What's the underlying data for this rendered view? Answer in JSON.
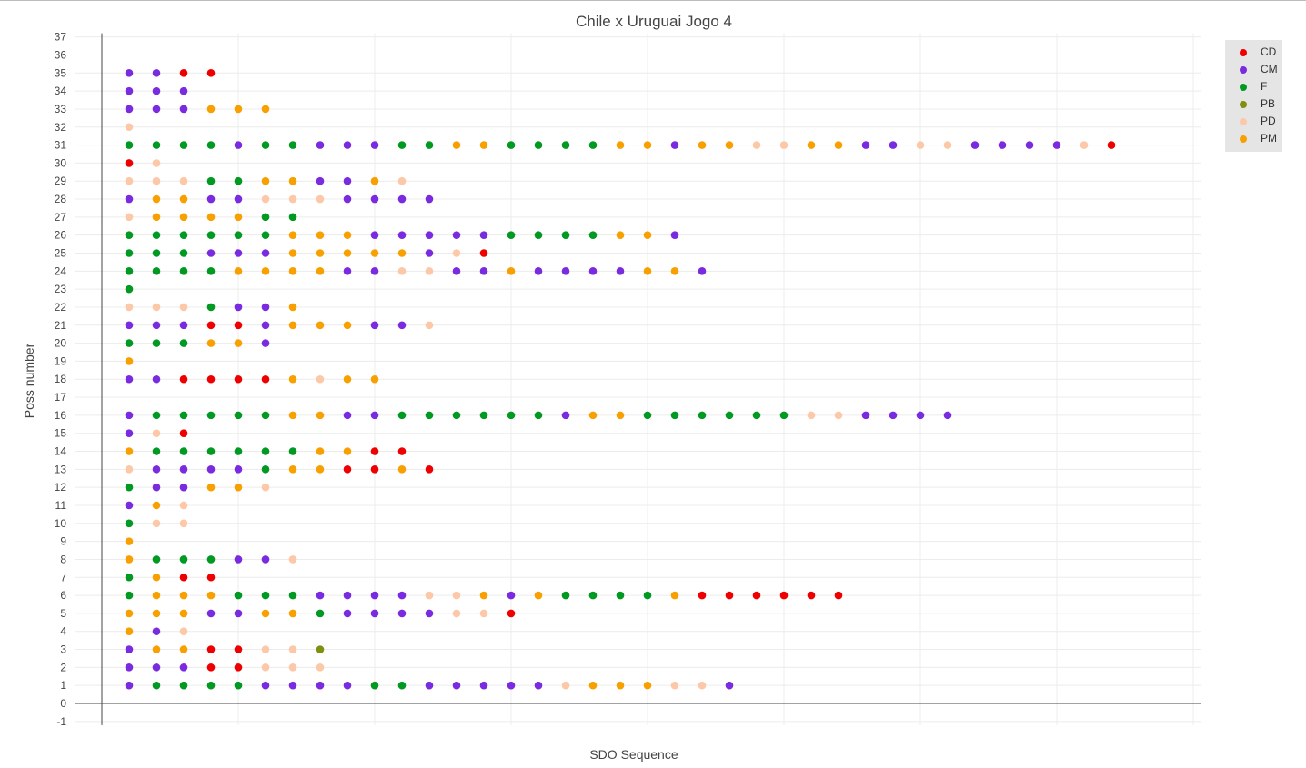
{
  "chart_data": {
    "type": "scatter",
    "title": "Chile x Uruguai Jogo 4",
    "xlabel": "SDO Sequence",
    "ylabel": "Poss number",
    "ylim": [
      -1,
      37
    ],
    "xlim": [
      0,
      40
    ],
    "y_ticks": [
      -1,
      0,
      1,
      2,
      3,
      4,
      5,
      6,
      7,
      8,
      9,
      10,
      11,
      12,
      13,
      14,
      15,
      16,
      17,
      18,
      19,
      20,
      21,
      22,
      23,
      24,
      25,
      26,
      27,
      28,
      29,
      30,
      31,
      32,
      33,
      34,
      35,
      36,
      37
    ],
    "x_ticks_labeled": false,
    "grid": true,
    "legend_position": "top-right",
    "colors": {
      "CD": "#ee0000",
      "CM": "#7a2be0",
      "F": "#009922",
      "PB": "#808f10",
      "PD": "#fcc8a8",
      "PM": "#f8a000"
    },
    "series_order": [
      "CD",
      "CM",
      "F",
      "PB",
      "PD",
      "PM"
    ],
    "sequences": {
      "1": [
        "CM",
        "F",
        "F",
        "F",
        "F",
        "CM",
        "CM",
        "CM",
        "CM",
        "F",
        "F",
        "CM",
        "CM",
        "CM",
        "CM",
        "CM",
        "PD",
        "PM",
        "PM",
        "PM",
        "PD",
        "PD",
        "CM"
      ],
      "2": [
        "CM",
        "CM",
        "CM",
        "CD",
        "CD",
        "PD",
        "PD",
        "PD"
      ],
      "3": [
        "CM",
        "PM",
        "PM",
        "CD",
        "CD",
        "PD",
        "PD",
        "PB"
      ],
      "4": [
        "PM",
        "CM",
        "PD"
      ],
      "5": [
        "PM",
        "PM",
        "PM",
        "CM",
        "CM",
        "PM",
        "PM",
        "F",
        "CM",
        "CM",
        "CM",
        "CM",
        "PD",
        "PD",
        "CD"
      ],
      "6": [
        "F",
        "PM",
        "PM",
        "PM",
        "F",
        "F",
        "F",
        "CM",
        "CM",
        "CM",
        "CM",
        "PD",
        "PD",
        "PM",
        "CM",
        "PM",
        "F",
        "F",
        "F",
        "F",
        "PM",
        "CD",
        "CD",
        "CD",
        "CD",
        "CD",
        "CD"
      ],
      "7": [
        "F",
        "PM",
        "CD",
        "CD"
      ],
      "8": [
        "PM",
        "F",
        "F",
        "F",
        "CM",
        "CM",
        "PD"
      ],
      "9": [
        "PM"
      ],
      "10": [
        "F",
        "PD",
        "PD"
      ],
      "11": [
        "CM",
        "PM",
        "PD"
      ],
      "12": [
        "F",
        "CM",
        "CM",
        "PM",
        "PM",
        "PD"
      ],
      "13": [
        "PD",
        "CM",
        "CM",
        "CM",
        "CM",
        "F",
        "PM",
        "PM",
        "CD",
        "CD",
        "PM",
        "CD"
      ],
      "14": [
        "PM",
        "F",
        "F",
        "F",
        "F",
        "F",
        "F",
        "PM",
        "PM",
        "CD",
        "CD"
      ],
      "15": [
        "CM",
        "PD",
        "CD"
      ],
      "16": [
        "CM",
        "F",
        "F",
        "F",
        "F",
        "F",
        "PM",
        "PM",
        "CM",
        "CM",
        "F",
        "F",
        "F",
        "F",
        "F",
        "F",
        "CM",
        "PM",
        "PM",
        "F",
        "F",
        "F",
        "F",
        "F",
        "F",
        "PD",
        "PD",
        "CM",
        "CM",
        "CM",
        "CM"
      ],
      "18": [
        "CM",
        "CM",
        "CD",
        "CD",
        "CD",
        "CD",
        "PM",
        "PD",
        "PM",
        "PM"
      ],
      "19": [
        "PM"
      ],
      "20": [
        "F",
        "F",
        "F",
        "PM",
        "PM",
        "CM"
      ],
      "21": [
        "CM",
        "CM",
        "CM",
        "CD",
        "CD",
        "CM",
        "PM",
        "PM",
        "PM",
        "CM",
        "CM",
        "PD"
      ],
      "22": [
        "PD",
        "PD",
        "PD",
        "F",
        "CM",
        "CM",
        "PM"
      ],
      "23": [
        "F"
      ],
      "24": [
        "F",
        "F",
        "F",
        "F",
        "PM",
        "PM",
        "PM",
        "PM",
        "CM",
        "CM",
        "PD",
        "PD",
        "CM",
        "CM",
        "PM",
        "CM",
        "CM",
        "CM",
        "CM",
        "PM",
        "PM",
        "CM"
      ],
      "25": [
        "F",
        "F",
        "F",
        "CM",
        "CM",
        "CM",
        "PM",
        "PM",
        "PM",
        "PM",
        "PM",
        "CM",
        "PD",
        "CD"
      ],
      "26": [
        "F",
        "F",
        "F",
        "F",
        "F",
        "F",
        "PM",
        "PM",
        "PM",
        "CM",
        "CM",
        "CM",
        "CM",
        "CM",
        "F",
        "F",
        "F",
        "F",
        "PM",
        "PM",
        "CM"
      ],
      "27": [
        "PD",
        "PM",
        "PM",
        "PM",
        "PM",
        "F",
        "F"
      ],
      "28": [
        "CM",
        "PM",
        "PM",
        "CM",
        "CM",
        "PD",
        "PD",
        "PD",
        "CM",
        "CM",
        "CM",
        "CM"
      ],
      "29": [
        "PD",
        "PD",
        "PD",
        "F",
        "F",
        "PM",
        "PM",
        "CM",
        "CM",
        "PM",
        "PD"
      ],
      "30": [
        "CD",
        "PD"
      ],
      "31": [
        "F",
        "F",
        "F",
        "F",
        "CM",
        "F",
        "F",
        "CM",
        "CM",
        "CM",
        "F",
        "F",
        "PM",
        "PM",
        "F",
        "F",
        "F",
        "F",
        "PM",
        "PM",
        "CM",
        "PM",
        "PM",
        "PD",
        "PD",
        "PM",
        "PM",
        "CM",
        "CM",
        "PD",
        "PD",
        "CM",
        "CM",
        "CM",
        "CM",
        "PD",
        "CD"
      ],
      "32": [
        "PD"
      ],
      "33": [
        "CM",
        "CM",
        "CM",
        "PM",
        "PM",
        "PM"
      ],
      "34": [
        "CM",
        "CM",
        "CM"
      ],
      "35": [
        "CM",
        "CM",
        "CD",
        "CD"
      ]
    }
  }
}
